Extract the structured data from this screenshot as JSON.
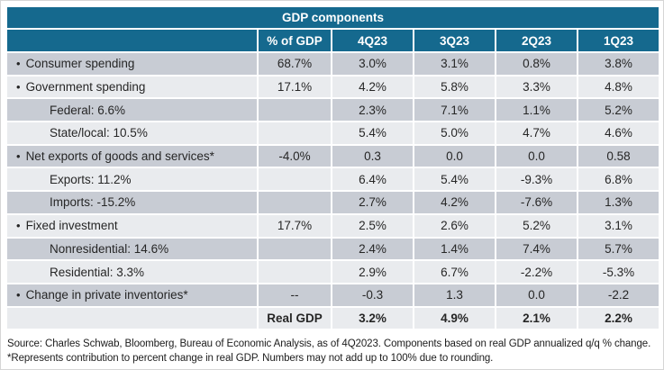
{
  "table": {
    "title": "GDP components",
    "bullet_char": "•",
    "columns": [
      "",
      "% of GDP",
      "4Q23",
      "3Q23",
      "2Q23",
      "1Q23"
    ],
    "rows": [
      {
        "label": "Consumer spending",
        "bullet": true,
        "indent": false,
        "pct_of_gdp": "68.7%",
        "values": [
          "3.0%",
          "3.1%",
          "0.8%",
          "3.8%"
        ],
        "bold": false
      },
      {
        "label": "Government spending",
        "bullet": true,
        "indent": false,
        "pct_of_gdp": "17.1%",
        "values": [
          "4.2%",
          "5.8%",
          "3.3%",
          "4.8%"
        ],
        "bold": false
      },
      {
        "label": "Federal: 6.6%",
        "bullet": false,
        "indent": true,
        "pct_of_gdp": "",
        "values": [
          "2.3%",
          "7.1%",
          "1.1%",
          "5.2%"
        ],
        "bold": false
      },
      {
        "label": "State/local: 10.5%",
        "bullet": false,
        "indent": true,
        "pct_of_gdp": "",
        "values": [
          "5.4%",
          "5.0%",
          "4.7%",
          "4.6%"
        ],
        "bold": false
      },
      {
        "label": "Net exports of goods and services*",
        "bullet": true,
        "indent": false,
        "pct_of_gdp": "-4.0%",
        "values": [
          "0.3",
          "0.0",
          "0.0",
          "0.58"
        ],
        "bold": false
      },
      {
        "label": "Exports: 11.2%",
        "bullet": false,
        "indent": true,
        "pct_of_gdp": "",
        "values": [
          "6.4%",
          "5.4%",
          "-9.3%",
          "6.8%"
        ],
        "bold": false
      },
      {
        "label": "Imports: -15.2%",
        "bullet": false,
        "indent": true,
        "pct_of_gdp": "",
        "values": [
          "2.7%",
          "4.2%",
          "-7.6%",
          "1.3%"
        ],
        "bold": false
      },
      {
        "label": "Fixed investment",
        "bullet": true,
        "indent": false,
        "pct_of_gdp": "17.7%",
        "values": [
          "2.5%",
          "2.6%",
          "5.2%",
          "3.1%"
        ],
        "bold": false
      },
      {
        "label": "Nonresidential: 14.6%",
        "bullet": false,
        "indent": true,
        "pct_of_gdp": "",
        "values": [
          "2.4%",
          "1.4%",
          "7.4%",
          "5.7%"
        ],
        "bold": false
      },
      {
        "label": "Residential: 3.3%",
        "bullet": false,
        "indent": true,
        "pct_of_gdp": "",
        "values": [
          "2.9%",
          "6.7%",
          "-2.2%",
          "-5.3%"
        ],
        "bold": false
      },
      {
        "label": "Change in private inventories*",
        "bullet": true,
        "indent": false,
        "pct_of_gdp": "--",
        "values": [
          "-0.3",
          "1.3",
          "0.0",
          "-2.2"
        ],
        "bold": false
      },
      {
        "label": "",
        "bullet": false,
        "indent": false,
        "pct_of_gdp": "Real GDP",
        "values": [
          "3.2%",
          "4.9%",
          "2.1%",
          "2.2%"
        ],
        "bold": true
      }
    ]
  },
  "footer": {
    "source": "Source: Charles Schwab, Bloomberg, Bureau of Economic Analysis, as of 4Q2023. Components based on real GDP annualized q/q % change. *Represents contribution to percent change in real GDP. Numbers may not add up to 100% due to rounding."
  },
  "colors": {
    "header_teal": "#15698e",
    "row_dark": "#c8ccd4",
    "row_light": "#e9ebee",
    "header_text": "#ffffff",
    "body_text": "#262626"
  }
}
